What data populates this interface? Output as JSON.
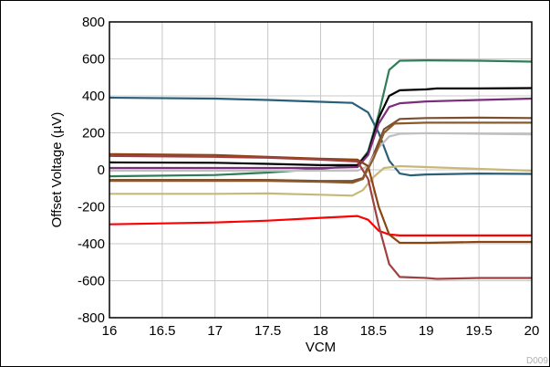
{
  "chart_data": {
    "type": "line",
    "xlabel": "VCM",
    "ylabel": "Offset Voltage (µV)",
    "xlim": [
      16,
      20
    ],
    "ylim": [
      -800,
      800
    ],
    "xticks": [
      "16",
      "16.5",
      "17",
      "17.5",
      "18",
      "18.5",
      "19",
      "19.5",
      "20"
    ],
    "yticks": [
      "-800",
      "-600",
      "-400",
      "-200",
      "0",
      "200",
      "400",
      "600",
      "800"
    ],
    "grid": true,
    "legend": "none",
    "figure_id": "D009",
    "series": [
      {
        "color": "#2a5f7a",
        "points": [
          [
            16,
            390
          ],
          [
            17,
            385
          ],
          [
            17.5,
            378
          ],
          [
            18,
            368
          ],
          [
            18.3,
            362
          ],
          [
            18.45,
            310
          ],
          [
            18.55,
            200
          ],
          [
            18.65,
            50
          ],
          [
            18.75,
            -20
          ],
          [
            18.85,
            -30
          ],
          [
            19,
            -25
          ],
          [
            19.5,
            -20
          ],
          [
            20,
            -22
          ]
        ]
      },
      {
        "color": "#2e7d55",
        "points": [
          [
            16,
            -35
          ],
          [
            17,
            -28
          ],
          [
            17.5,
            -15
          ],
          [
            18,
            5
          ],
          [
            18.35,
            25
          ],
          [
            18.45,
            100
          ],
          [
            18.55,
            300
          ],
          [
            18.65,
            540
          ],
          [
            18.75,
            590
          ],
          [
            19,
            592
          ],
          [
            19.5,
            590
          ],
          [
            20,
            585
          ]
        ]
      },
      {
        "color": "#000000",
        "points": [
          [
            16,
            40
          ],
          [
            17,
            38
          ],
          [
            17.5,
            32
          ],
          [
            18,
            25
          ],
          [
            18.35,
            25
          ],
          [
            18.45,
            90
          ],
          [
            18.55,
            280
          ],
          [
            18.65,
            400
          ],
          [
            18.75,
            430
          ],
          [
            19,
            435
          ],
          [
            19.1,
            440
          ],
          [
            19.5,
            440
          ],
          [
            20,
            442
          ]
        ]
      },
      {
        "color": "#7a2e7a",
        "points": [
          [
            16,
            10
          ],
          [
            17,
            10
          ],
          [
            17.5,
            10
          ],
          [
            18,
            10
          ],
          [
            18.35,
            15
          ],
          [
            18.45,
            80
          ],
          [
            18.55,
            250
          ],
          [
            18.65,
            340
          ],
          [
            18.75,
            360
          ],
          [
            19,
            370
          ],
          [
            19.5,
            378
          ],
          [
            20,
            385
          ]
        ]
      },
      {
        "color": "#7a4e2e",
        "points": [
          [
            16,
            -55
          ],
          [
            17,
            -55
          ],
          [
            17.5,
            -55
          ],
          [
            18,
            -60
          ],
          [
            18.3,
            -60
          ],
          [
            18.4,
            -45
          ],
          [
            18.5,
            80
          ],
          [
            18.6,
            220
          ],
          [
            18.75,
            275
          ],
          [
            19,
            280
          ],
          [
            19.5,
            282
          ],
          [
            20,
            280
          ]
        ]
      },
      {
        "color": "#c0c0c0",
        "points": [
          [
            16,
            -5
          ],
          [
            17,
            -5
          ],
          [
            17.5,
            -5
          ],
          [
            18,
            -5
          ],
          [
            18.35,
            -5
          ],
          [
            18.45,
            20
          ],
          [
            18.55,
            120
          ],
          [
            18.65,
            180
          ],
          [
            18.75,
            195
          ],
          [
            19,
            198
          ],
          [
            19.5,
            195
          ],
          [
            20,
            192
          ]
        ]
      },
      {
        "color": "#c8b878",
        "points": [
          [
            16,
            -130
          ],
          [
            17,
            -130
          ],
          [
            17.5,
            -128
          ],
          [
            18,
            -135
          ],
          [
            18.3,
            -140
          ],
          [
            18.4,
            -110
          ],
          [
            18.5,
            -40
          ],
          [
            18.6,
            10
          ],
          [
            18.75,
            20
          ],
          [
            19,
            15
          ],
          [
            19.5,
            5
          ],
          [
            20,
            -5
          ]
        ]
      },
      {
        "color": "#ff0000",
        "points": [
          [
            16,
            -295
          ],
          [
            17,
            -285
          ],
          [
            17.5,
            -275
          ],
          [
            18,
            -260
          ],
          [
            18.35,
            -250
          ],
          [
            18.45,
            -270
          ],
          [
            18.55,
            -330
          ],
          [
            18.65,
            -350
          ],
          [
            18.75,
            -355
          ],
          [
            19,
            -355
          ],
          [
            19.5,
            -355
          ],
          [
            20,
            -355
          ]
        ]
      },
      {
        "color": "#8b4513",
        "points": [
          [
            16,
            85
          ],
          [
            17,
            80
          ],
          [
            17.5,
            70
          ],
          [
            18,
            60
          ],
          [
            18.35,
            55
          ],
          [
            18.45,
            20
          ],
          [
            18.55,
            -200
          ],
          [
            18.65,
            -350
          ],
          [
            18.75,
            -395
          ],
          [
            19,
            -395
          ],
          [
            19.5,
            -390
          ],
          [
            20,
            -390
          ]
        ]
      },
      {
        "color": "#a04040",
        "points": [
          [
            16,
            75
          ],
          [
            17,
            70
          ],
          [
            17.5,
            65
          ],
          [
            18,
            55
          ],
          [
            18.35,
            45
          ],
          [
            18.45,
            -50
          ],
          [
            18.55,
            -300
          ],
          [
            18.65,
            -510
          ],
          [
            18.75,
            -580
          ],
          [
            19,
            -585
          ],
          [
            19.1,
            -590
          ],
          [
            19.5,
            -585
          ],
          [
            20,
            -585
          ]
        ]
      },
      {
        "color": "#8b5a2b",
        "points": [
          [
            16,
            -60
          ],
          [
            17,
            -60
          ],
          [
            17.5,
            -60
          ],
          [
            18,
            -65
          ],
          [
            18.3,
            -70
          ],
          [
            18.4,
            -50
          ],
          [
            18.5,
            60
          ],
          [
            18.6,
            200
          ],
          [
            18.7,
            250
          ],
          [
            19,
            255
          ],
          [
            19.5,
            255
          ],
          [
            20,
            255
          ]
        ]
      }
    ]
  }
}
